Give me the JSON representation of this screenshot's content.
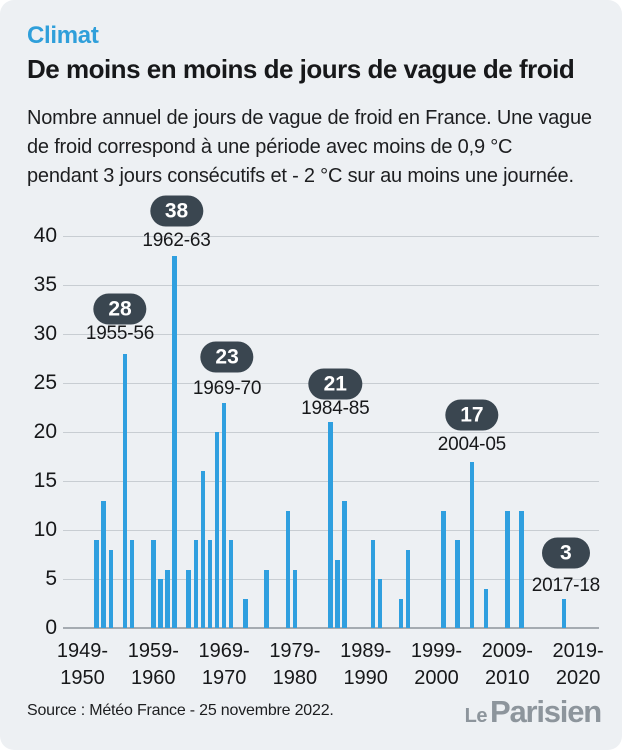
{
  "header": {
    "kicker": "Climat",
    "title": "De moins en moins de jours de vague de froid",
    "subtitle_lines": [
      "Nombre annuel de jours de vague de froid en France. Une vague",
      "de froid correspond à une période avec moins de 0,9 °C",
      "pendant 3 jours consécutifs et - 2 °C sur au moins une journée."
    ]
  },
  "footer": {
    "source": "Source : Météo France - 25 novembre 2022.",
    "logo_le": "Le",
    "logo_parisien": "Parisien"
  },
  "colors": {
    "background": "#edf0f3",
    "bar": "#2f9fdf",
    "kicker": "#2f9fda",
    "badge": "#3a4650",
    "badge_text": "#ffffff",
    "text": "#17181a",
    "gridline": "#c8cdd2",
    "logo_gray": "#8d959c"
  },
  "chart_data": {
    "type": "bar",
    "title": "Nombre annuel de jours de vague de froid en France",
    "xlabel": "",
    "ylabel": "jours de vague de froid",
    "ylim": [
      0,
      40
    ],
    "yticks": [
      0,
      5,
      10,
      15,
      20,
      25,
      30,
      35,
      40
    ],
    "grid": true,
    "x_domain_seasons": [
      "1949-50",
      "2019-20"
    ],
    "xticks": [
      {
        "top": "1949-",
        "bottom": "1950"
      },
      {
        "top": "1959-",
        "bottom": "1960"
      },
      {
        "top": "1969-",
        "bottom": "1970"
      },
      {
        "top": "1979-",
        "bottom": "1980"
      },
      {
        "top": "1989-",
        "bottom": "1990"
      },
      {
        "top": "1999-",
        "bottom": "2000"
      },
      {
        "top": "2009-",
        "bottom": "2010"
      },
      {
        "top": "2019-",
        "bottom": "2020"
      }
    ],
    "points": [
      {
        "season": "1951-52",
        "value": 9
      },
      {
        "season": "1952-53",
        "value": 13
      },
      {
        "season": "1953-54",
        "value": 8
      },
      {
        "season": "1955-56",
        "value": 28
      },
      {
        "season": "1956-57",
        "value": 9
      },
      {
        "season": "1959-60",
        "value": 9
      },
      {
        "season": "1960-61",
        "value": 5
      },
      {
        "season": "1961-62",
        "value": 6
      },
      {
        "season": "1962-63",
        "value": 38
      },
      {
        "season": "1964-65",
        "value": 6
      },
      {
        "season": "1965-66",
        "value": 9
      },
      {
        "season": "1966-67",
        "value": 16
      },
      {
        "season": "1967-68",
        "value": 9
      },
      {
        "season": "1968-69",
        "value": 20
      },
      {
        "season": "1969-70",
        "value": 23
      },
      {
        "season": "1970-71",
        "value": 9
      },
      {
        "season": "1972-73",
        "value": 3
      },
      {
        "season": "1975-76",
        "value": 6
      },
      {
        "season": "1978-79",
        "value": 12
      },
      {
        "season": "1979-80",
        "value": 6
      },
      {
        "season": "1984-85",
        "value": 21
      },
      {
        "season": "1985-86",
        "value": 7
      },
      {
        "season": "1986-87",
        "value": 13
      },
      {
        "season": "1990-91",
        "value": 9
      },
      {
        "season": "1991-92",
        "value": 5
      },
      {
        "season": "1994-95",
        "value": 3
      },
      {
        "season": "1995-96",
        "value": 8
      },
      {
        "season": "2000-01",
        "value": 12
      },
      {
        "season": "2002-03",
        "value": 9
      },
      {
        "season": "2004-05",
        "value": 17
      },
      {
        "season": "2006-07",
        "value": 4
      },
      {
        "season": "2009-10",
        "value": 12
      },
      {
        "season": "2011-12",
        "value": 12
      },
      {
        "season": "2017-18",
        "value": 3
      }
    ],
    "annotations": [
      {
        "badge": "28",
        "season": "1955-56"
      },
      {
        "badge": "38",
        "season": "1962-63"
      },
      {
        "badge": "23",
        "season": "1969-70"
      },
      {
        "badge": "21",
        "season": "1984-85"
      },
      {
        "badge": "17",
        "season": "2004-05"
      },
      {
        "badge": "3",
        "season": "2017-18"
      }
    ],
    "legend": null
  }
}
